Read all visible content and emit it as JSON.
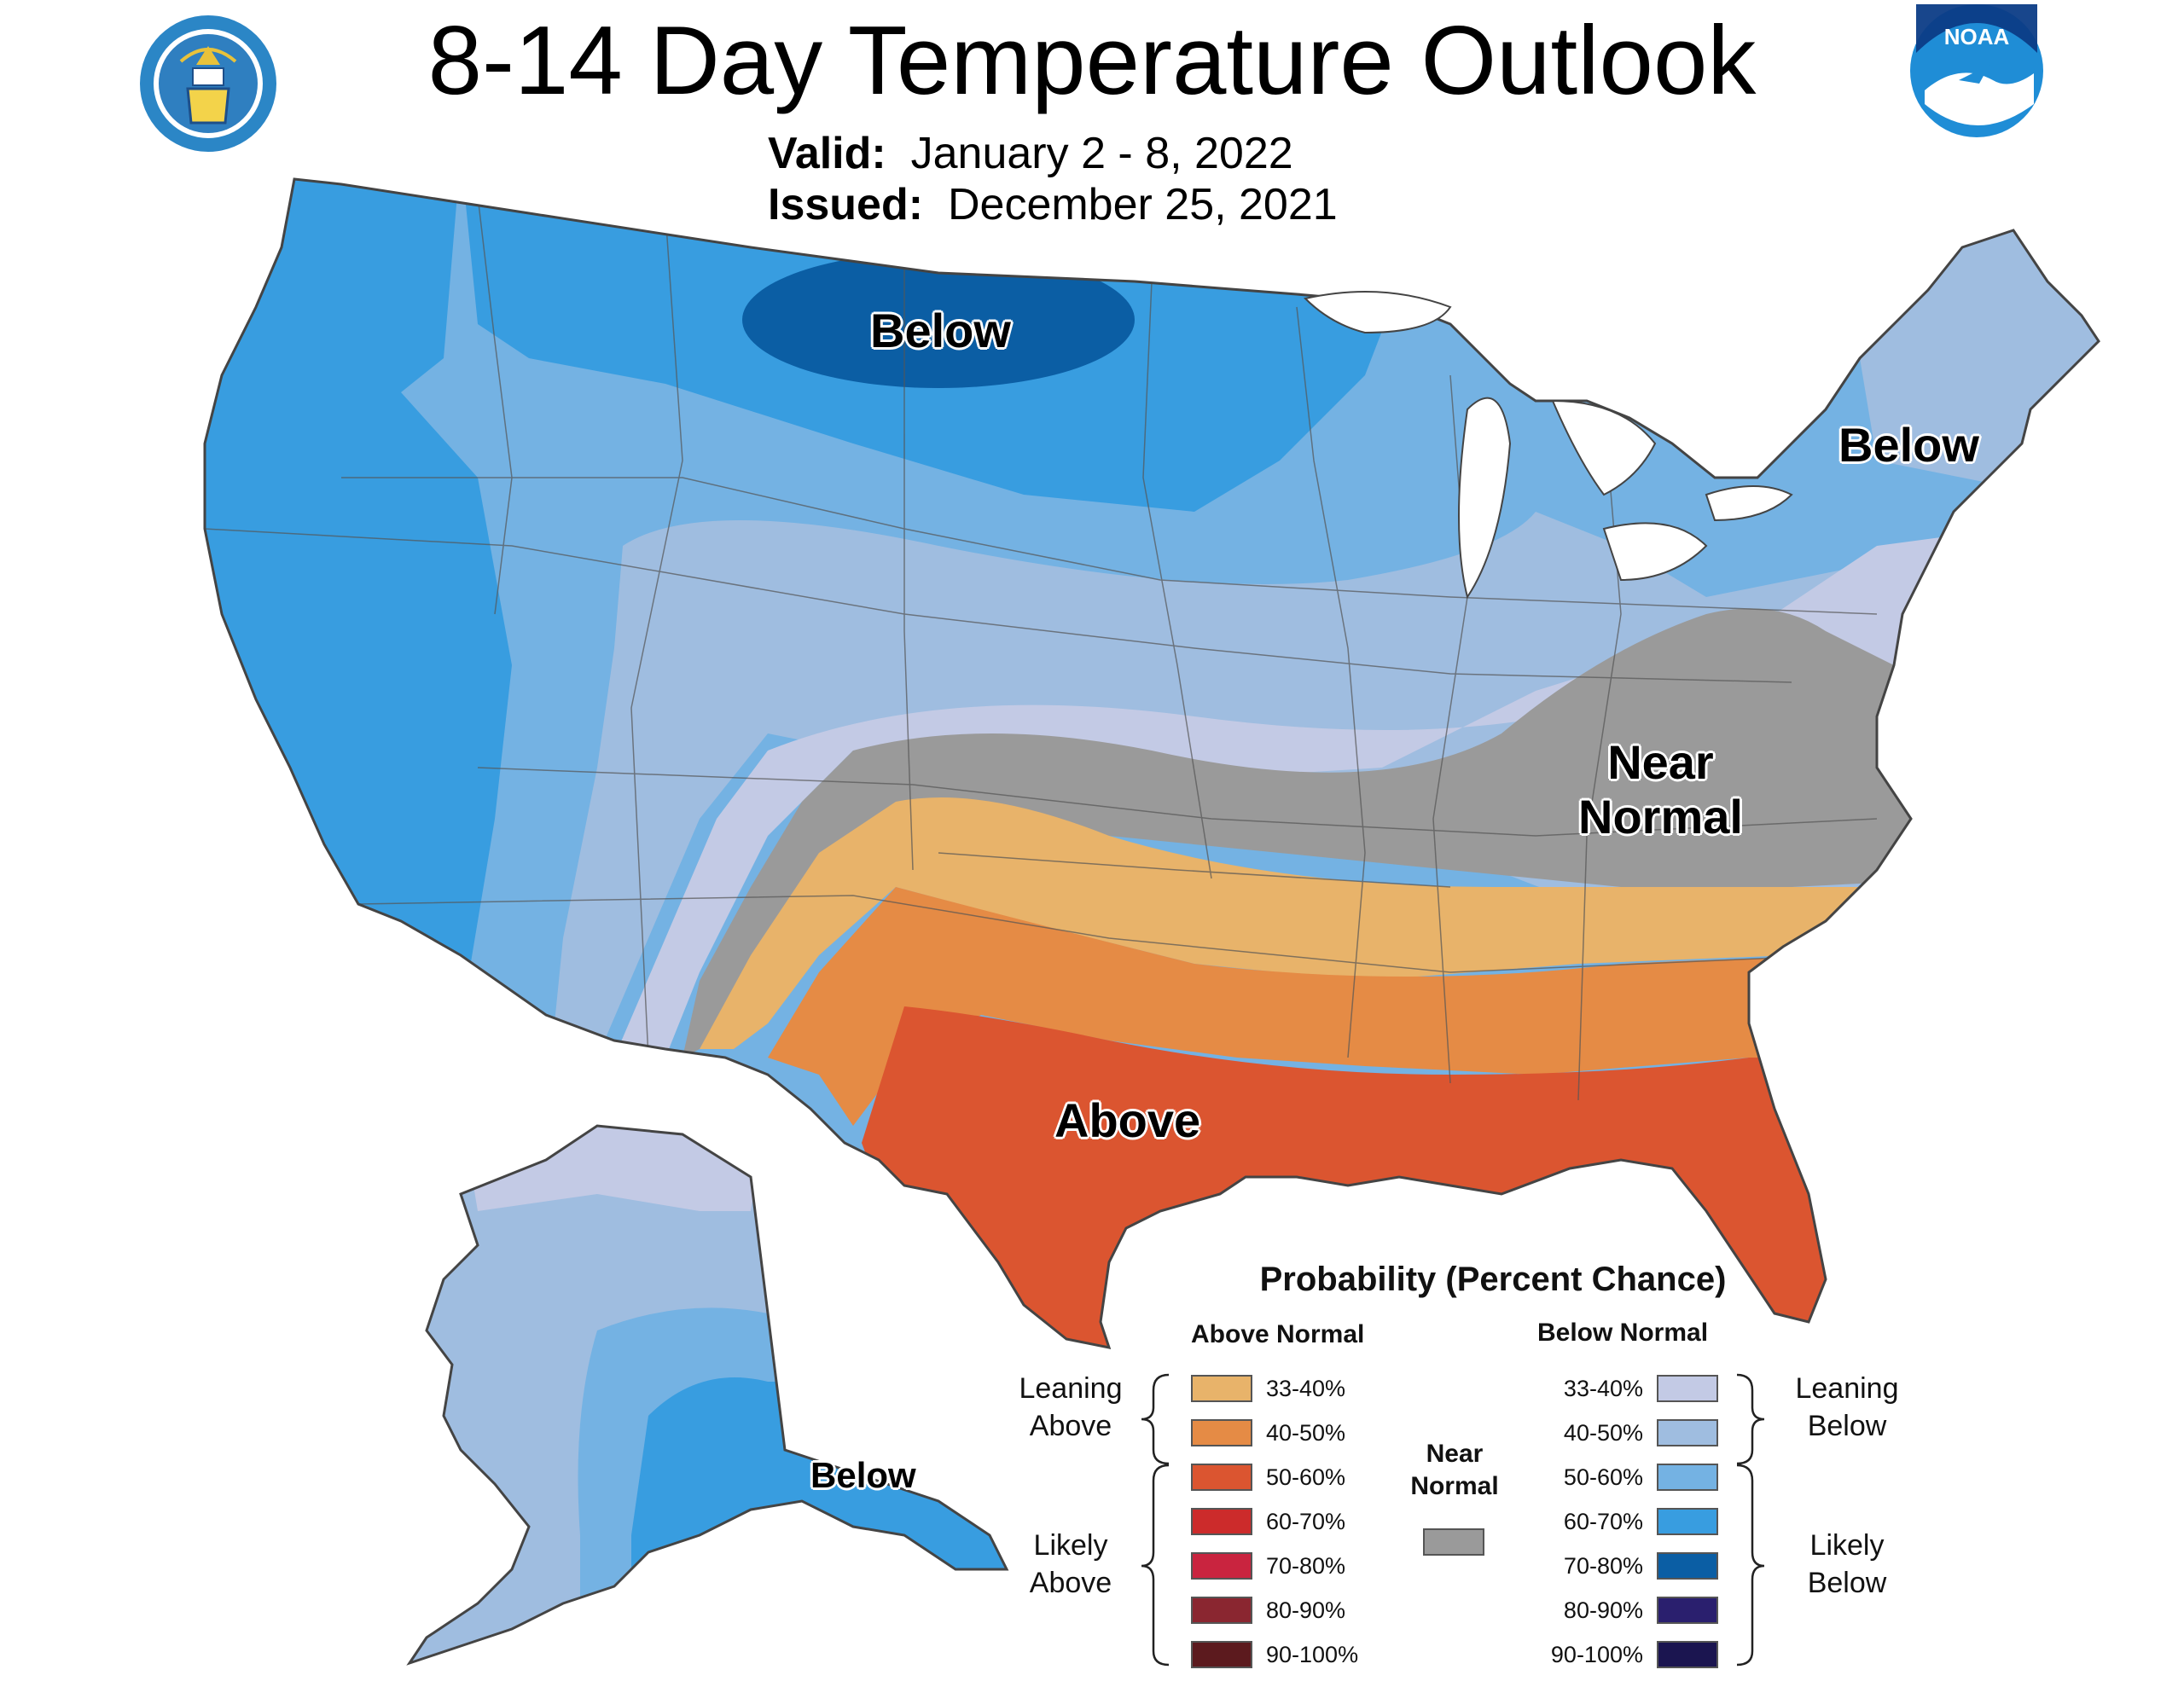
{
  "title": "8-14 Day Temperature Outlook",
  "valid_label": "Valid:",
  "valid_value": "January 2 - 8, 2022",
  "issued_label": "Issued:",
  "issued_value": "December 25, 2021",
  "logos": {
    "left": "department-of-commerce-seal",
    "right": "noaa-logo",
    "noaa_text": "NOAA"
  },
  "map_labels": {
    "below_north": "Below",
    "below_northeast": "Below",
    "near_normal_line1": "Near",
    "near_normal_line2": "Normal",
    "above": "Above",
    "below_alaska": "Below"
  },
  "legend": {
    "title": "Probability (Percent Chance)",
    "above_header": "Above Normal",
    "below_header": "Below Normal",
    "leaning_above": [
      "Leaning",
      "Above"
    ],
    "likely_above": [
      "Likely",
      "Above"
    ],
    "leaning_below": [
      "Leaning",
      "Below"
    ],
    "likely_below": [
      "Likely",
      "Below"
    ],
    "near_normal": [
      "Near",
      "Normal"
    ],
    "near_normal_color": "#9a9a9a",
    "above": [
      {
        "range": "33-40%",
        "color": "#e8b36a"
      },
      {
        "range": "40-50%",
        "color": "#e58b45"
      },
      {
        "range": "50-60%",
        "color": "#db5530"
      },
      {
        "range": "60-70%",
        "color": "#cc2b2b"
      },
      {
        "range": "70-80%",
        "color": "#c9243f"
      },
      {
        "range": "80-90%",
        "color": "#8a2630"
      },
      {
        "range": "90-100%",
        "color": "#5c1a1e"
      }
    ],
    "below": [
      {
        "range": "33-40%",
        "color": "#c3cae5"
      },
      {
        "range": "40-50%",
        "color": "#9fbde0"
      },
      {
        "range": "50-60%",
        "color": "#74b2e3"
      },
      {
        "range": "60-70%",
        "color": "#389de0"
      },
      {
        "range": "70-80%",
        "color": "#0b5ea4"
      },
      {
        "range": "80-90%",
        "color": "#2a1f6e"
      },
      {
        "range": "90-100%",
        "color": "#1b1550"
      }
    ]
  }
}
